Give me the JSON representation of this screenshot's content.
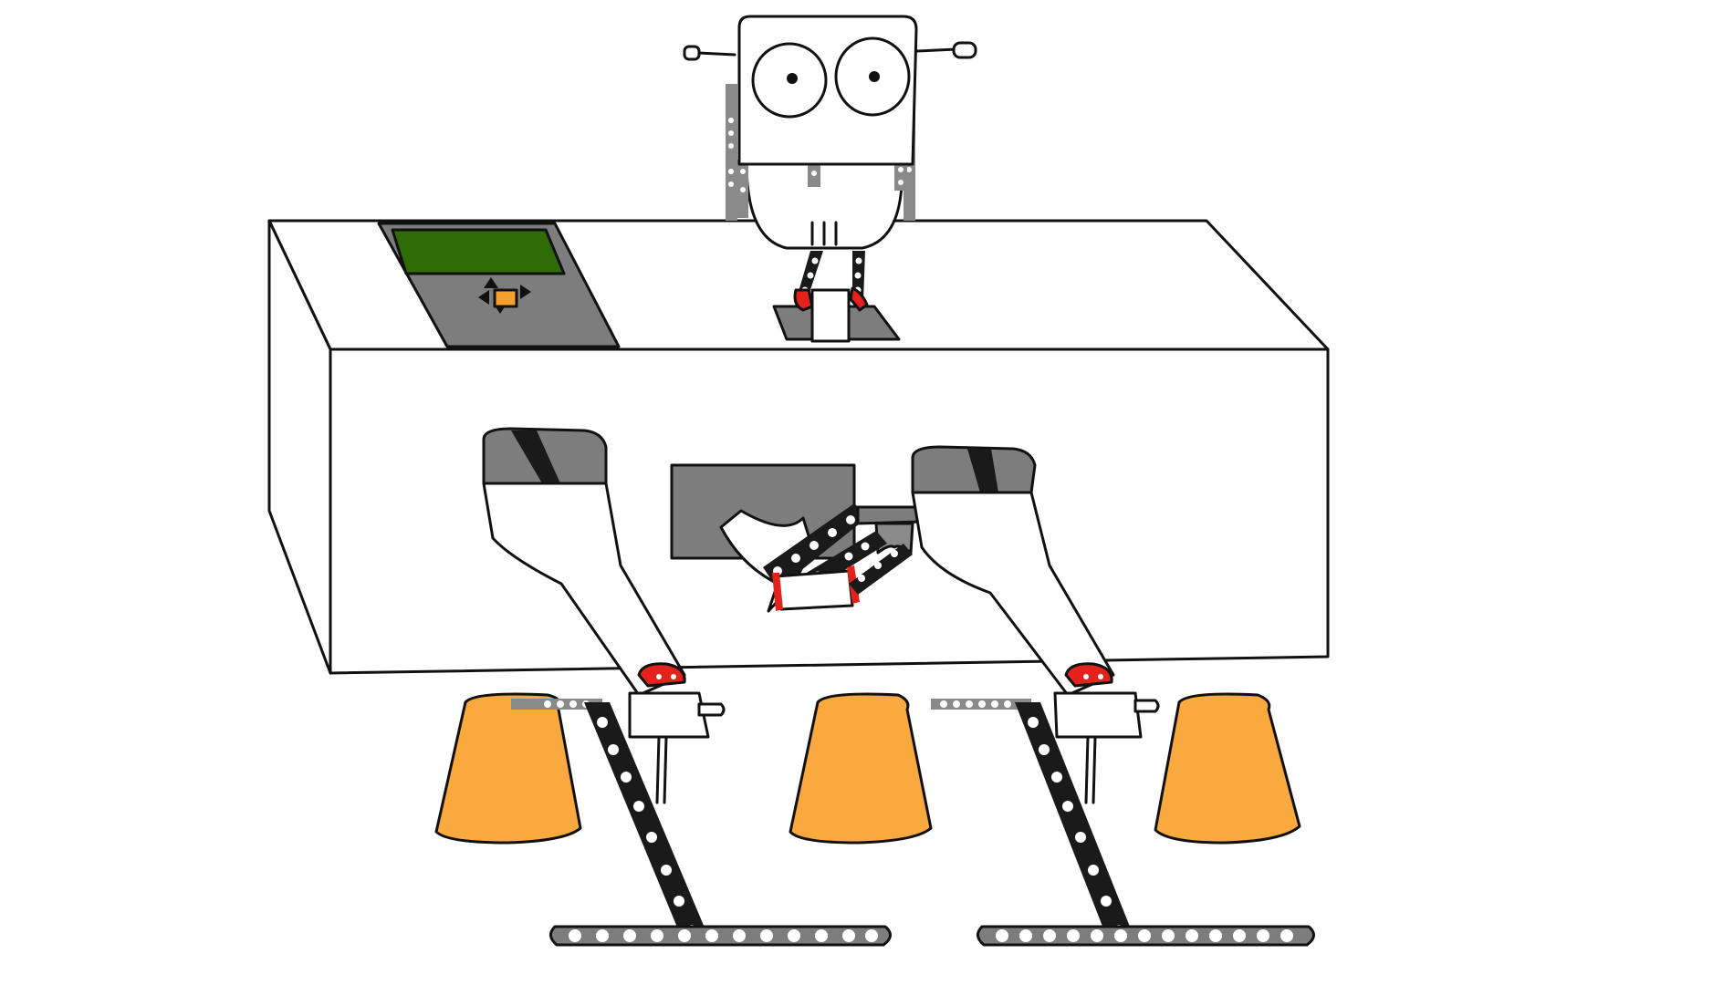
{
  "colors": {
    "background": "#ffffff",
    "ink": "#111111",
    "panel_grey": "#7d7d7d",
    "screen_green": "#2f6b06",
    "button_orange": "#f2a12e",
    "pot_orange": "#faa93f",
    "accent_red": "#e3231b",
    "chain_grey": "#8a8a8a",
    "chain_dark": "#1a1a1a",
    "bead_white": "#ffffff",
    "box_white": "#ffffff"
  },
  "icons": [
    "up-arrow-icon",
    "down-arrow-icon",
    "left-arrow-icon",
    "right-arrow-icon"
  ]
}
